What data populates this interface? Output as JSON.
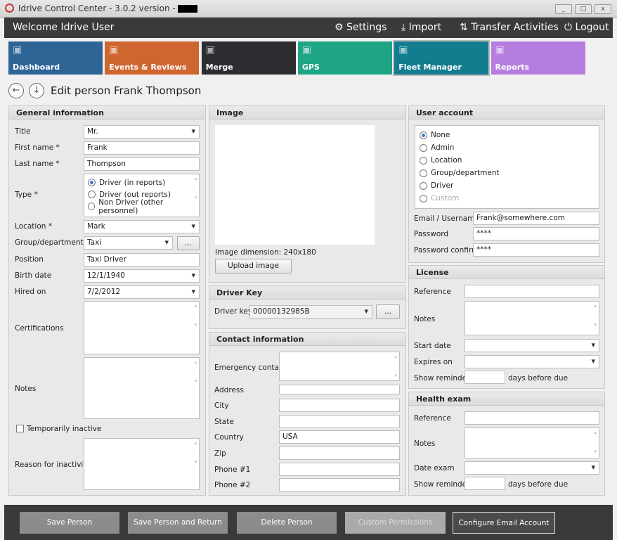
{
  "window": {
    "title": "Idrive Control Center - 3.0.2 version -",
    "minimize": "_",
    "maximize": "□",
    "close": "x"
  },
  "header": {
    "welcome": "Welcome Idrive User",
    "settings": "Settings",
    "import": "Import",
    "transfer": "Transfer Activities",
    "logout": "Logout"
  },
  "tiles": [
    {
      "label": "Dashboard",
      "color": "#2f6497",
      "icon": "chart-icon"
    },
    {
      "label": "Events & Reviews",
      "color": "#cf6630",
      "icon": "clipboard-icon"
    },
    {
      "label": "Merge",
      "color": "#2b2d31",
      "icon": "merge-icon"
    },
    {
      "label": "GPS",
      "color": "#1ea585",
      "icon": "map-pin-icon"
    },
    {
      "label": "Fleet Manager",
      "color": "#127d8f",
      "icon": "cars-icon",
      "active": true
    },
    {
      "label": "Reports",
      "color": "#b57ddf",
      "icon": "pie-chart-icon"
    }
  ],
  "page": {
    "title": "Edit person Frank Thompson"
  },
  "general": {
    "title": "General information",
    "title_label": "Title",
    "title_value": "Mr.",
    "first_label": "First name *",
    "first_value": "Frank",
    "last_label": "Last name *",
    "last_value": "Thompson",
    "type_label": "Type *",
    "types": [
      "Driver (in reports)",
      "Driver (out reports)",
      "Non Driver (other personnel)"
    ],
    "type_selected": 0,
    "location_label": "Location *",
    "location_value": "Mark",
    "group_label": "Group/department",
    "group_value": "Taxi",
    "group_more": "...",
    "position_label": "Position",
    "position_value": "Taxi Driver",
    "birth_label": "Birth date",
    "birth_value": "12/1/1940",
    "hired_label": "Hired on",
    "hired_value": "7/2/2012",
    "cert_label": "Certifications",
    "notes_label": "Notes",
    "inactive_label": "Temporarily inactive",
    "inactive_checked": false,
    "reason_label": "Reason for inactivity"
  },
  "image": {
    "title": "Image",
    "dimension_label": "Image dimension:",
    "dimension_value": "240x180",
    "upload": "Upload image"
  },
  "driverkey": {
    "title": "Driver Key",
    "label": "Driver key",
    "value": "00000132985B",
    "more": "..."
  },
  "contact": {
    "title": "Contact information",
    "emergency": "Emergency contact",
    "address": "Address",
    "city": "City",
    "state": "State",
    "country": "Country",
    "country_value": "USA",
    "zip": "Zip",
    "phone1": "Phone #1",
    "phone2": "Phone #2"
  },
  "account": {
    "title": "User account",
    "roles": [
      "None",
      "Admin",
      "Location",
      "Group/department",
      "Driver",
      "Custom"
    ],
    "role_selected": 0,
    "email_label": "Email / Username",
    "email_value": "Frank@somewhere.com",
    "password_label": "Password",
    "password_value": "****",
    "confirm_label": "Password confirm",
    "confirm_value": "****"
  },
  "license": {
    "title": "License",
    "reference": "Reference",
    "notes": "Notes",
    "start": "Start date",
    "expires": "Expires on",
    "reminder": "Show reminder",
    "days": "days before due"
  },
  "health": {
    "title": "Health exam",
    "reference": "Reference",
    "notes": "Notes",
    "date": "Date exam",
    "reminder": "Show reminder",
    "days": "days before due"
  },
  "footer": {
    "save": "Save Person",
    "save_return": "Save Person and Return",
    "delete": "Delete Person",
    "permissions": "Custom Permissions",
    "email": "Configure Email Account"
  }
}
